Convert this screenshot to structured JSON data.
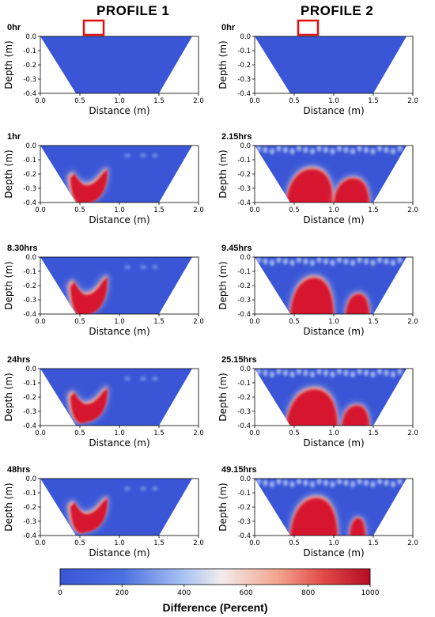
{
  "figure": {
    "columns": [
      {
        "title": "PROFILE 1"
      },
      {
        "title": "PROFILE 2"
      }
    ]
  },
  "chart_data": [
    {
      "type": "heatmap",
      "profile": "PROFILE 1",
      "time_label": "0hr",
      "xlabel": "Distance (m)",
      "ylabel": "Depth (m)",
      "xlim": [
        0.0,
        2.0
      ],
      "ylim": [
        -0.4,
        0.0
      ],
      "x_ticks": [
        "0.0",
        "0.5",
        "1.0",
        "1.5",
        "2.0"
      ],
      "y_ticks": [
        "0.0",
        "-0.1",
        "-0.2",
        "-0.3",
        "-0.4"
      ],
      "marker_box_x": [
        0.55,
        0.8
      ],
      "anomalies": []
    },
    {
      "type": "heatmap",
      "profile": "PROFILE 2",
      "time_label": "0hr",
      "xlabel": "Distance (m)",
      "ylabel": "Depth (m)",
      "xlim": [
        0.0,
        2.0
      ],
      "ylim": [
        -0.4,
        0.0
      ],
      "x_ticks": [
        "0.0",
        "0.5",
        "1.0",
        "1.5",
        "2.0"
      ],
      "y_ticks": [
        "0.0",
        "-0.1",
        "-0.2",
        "-0.3",
        "-0.4"
      ],
      "marker_box_x": [
        0.55,
        0.8
      ],
      "anomalies": []
    },
    {
      "type": "heatmap",
      "profile": "PROFILE 1",
      "time_label": "1hr",
      "xlabel": "Distance (m)",
      "ylabel": "Depth (m)",
      "xlim": [
        0.0,
        2.0
      ],
      "ylim": [
        -0.4,
        0.0
      ],
      "x_ticks": [
        "0.0",
        "0.5",
        "1.0",
        "1.5",
        "2.0"
      ],
      "y_ticks": [
        "0.0",
        "-0.1",
        "-0.2",
        "-0.3",
        "-0.4"
      ],
      "anomalies": [
        {
          "x_range": [
            0.35,
            0.85
          ],
          "depth_range": [
            -0.4,
            -0.15
          ],
          "max_percent": 1000
        }
      ]
    },
    {
      "type": "heatmap",
      "profile": "PROFILE 2",
      "time_label": "2.15hrs",
      "xlabel": "Distance (m)",
      "ylabel": "Depth (m)",
      "xlim": [
        0.0,
        2.0
      ],
      "ylim": [
        -0.4,
        0.0
      ],
      "x_ticks": [
        "0.0",
        "0.5",
        "1.0",
        "1.5",
        "2.0"
      ],
      "y_ticks": [
        "0.0",
        "-0.1",
        "-0.2",
        "-0.3",
        "-0.4"
      ],
      "anomalies": [
        {
          "x_range": [
            0.4,
            1.0
          ],
          "depth_range": [
            -0.4,
            -0.15
          ],
          "max_percent": 1000
        },
        {
          "x_range": [
            1.0,
            1.45
          ],
          "depth_range": [
            -0.4,
            -0.22
          ],
          "max_percent": 1000
        }
      ]
    },
    {
      "type": "heatmap",
      "profile": "PROFILE 1",
      "time_label": "8.30hrs",
      "xlabel": "Distance (m)",
      "ylabel": "Depth (m)",
      "xlim": [
        0.0,
        2.0
      ],
      "ylim": [
        -0.4,
        0.0
      ],
      "x_ticks": [
        "0.0",
        "0.5",
        "1.0",
        "1.5",
        "2.0"
      ],
      "y_ticks": [
        "0.0",
        "-0.1",
        "-0.2",
        "-0.3",
        "-0.4"
      ],
      "anomalies": [
        {
          "x_range": [
            0.35,
            0.85
          ],
          "depth_range": [
            -0.4,
            -0.12
          ],
          "max_percent": 1000
        }
      ]
    },
    {
      "type": "heatmap",
      "profile": "PROFILE 2",
      "time_label": "9.45hrs",
      "xlabel": "Distance (m)",
      "ylabel": "Depth (m)",
      "xlim": [
        0.0,
        2.0
      ],
      "ylim": [
        -0.4,
        0.0
      ],
      "x_ticks": [
        "0.0",
        "0.5",
        "1.0",
        "1.5",
        "2.0"
      ],
      "y_ticks": [
        "0.0",
        "-0.1",
        "-0.2",
        "-0.3",
        "-0.4"
      ],
      "anomalies": [
        {
          "x_range": [
            0.45,
            1.0
          ],
          "depth_range": [
            -0.4,
            -0.13
          ],
          "max_percent": 1000
        },
        {
          "x_range": [
            1.15,
            1.45
          ],
          "depth_range": [
            -0.4,
            -0.25
          ],
          "max_percent": 1000
        }
      ]
    },
    {
      "type": "heatmap",
      "profile": "PROFILE 1",
      "time_label": "24hrs",
      "xlabel": "Distance (m)",
      "ylabel": "Depth (m)",
      "xlim": [
        0.0,
        2.0
      ],
      "ylim": [
        -0.4,
        0.0
      ],
      "x_ticks": [
        "0.0",
        "0.5",
        "1.0",
        "1.5",
        "2.0"
      ],
      "y_ticks": [
        "0.0",
        "-0.1",
        "-0.2",
        "-0.3",
        "-0.4"
      ],
      "anomalies": [
        {
          "x_range": [
            0.35,
            0.85
          ],
          "depth_range": [
            -0.37,
            -0.12
          ],
          "max_percent": 1000
        }
      ]
    },
    {
      "type": "heatmap",
      "profile": "PROFILE 2",
      "time_label": "25.15hrs",
      "xlabel": "Distance (m)",
      "ylabel": "Depth (m)",
      "xlim": [
        0.0,
        2.0
      ],
      "ylim": [
        -0.4,
        0.0
      ],
      "x_ticks": [
        "0.0",
        "0.5",
        "1.0",
        "1.5",
        "2.0"
      ],
      "y_ticks": [
        "0.0",
        "-0.1",
        "-0.2",
        "-0.3",
        "-0.4"
      ],
      "anomalies": [
        {
          "x_range": [
            0.4,
            1.05
          ],
          "depth_range": [
            -0.4,
            -0.13
          ],
          "max_percent": 1000
        },
        {
          "x_range": [
            1.1,
            1.45
          ],
          "depth_range": [
            -0.4,
            -0.25
          ],
          "max_percent": 1000
        }
      ]
    },
    {
      "type": "heatmap",
      "profile": "PROFILE 1",
      "time_label": "48hrs",
      "xlabel": "Distance (m)",
      "ylabel": "Depth (m)",
      "xlim": [
        0.0,
        2.0
      ],
      "ylim": [
        -0.4,
        0.0
      ],
      "x_ticks": [
        "0.0",
        "0.5",
        "1.0",
        "1.5",
        "2.0"
      ],
      "y_ticks": [
        "0.0",
        "-0.1",
        "-0.2",
        "-0.3",
        "-0.4"
      ],
      "anomalies": [
        {
          "x_range": [
            0.35,
            0.85
          ],
          "depth_range": [
            -0.37,
            -0.12
          ],
          "max_percent": 1000
        }
      ]
    },
    {
      "type": "heatmap",
      "profile": "PROFILE 2",
      "time_label": "49.15hrs",
      "xlabel": "Distance (m)",
      "ylabel": "Depth (m)",
      "xlim": [
        0.0,
        2.0
      ],
      "ylim": [
        -0.4,
        0.0
      ],
      "x_ticks": [
        "0.0",
        "0.5",
        "1.0",
        "1.5",
        "2.0"
      ],
      "y_ticks": [
        "0.0",
        "-0.1",
        "-0.2",
        "-0.3",
        "-0.4"
      ],
      "anomalies": [
        {
          "x_range": [
            0.45,
            1.05
          ],
          "depth_range": [
            -0.4,
            -0.12
          ],
          "max_percent": 1000
        },
        {
          "x_range": [
            1.2,
            1.4
          ],
          "depth_range": [
            -0.4,
            -0.27
          ],
          "max_percent": 1000
        }
      ]
    }
  ],
  "colorbar": {
    "label": "Difference (Percent)",
    "ticks": [
      "0",
      "200",
      "400",
      "600",
      "800",
      "1000"
    ],
    "range": [
      0,
      1000
    ],
    "colors": [
      "#3a56d6",
      "#4a6fe0",
      "#aac4f2",
      "#f4e6e6",
      "#f2a090",
      "#c8102e"
    ]
  },
  "colors": {
    "background_fill": "#3a56d6",
    "high": "#d6162e",
    "marker_box": "#e01010"
  }
}
